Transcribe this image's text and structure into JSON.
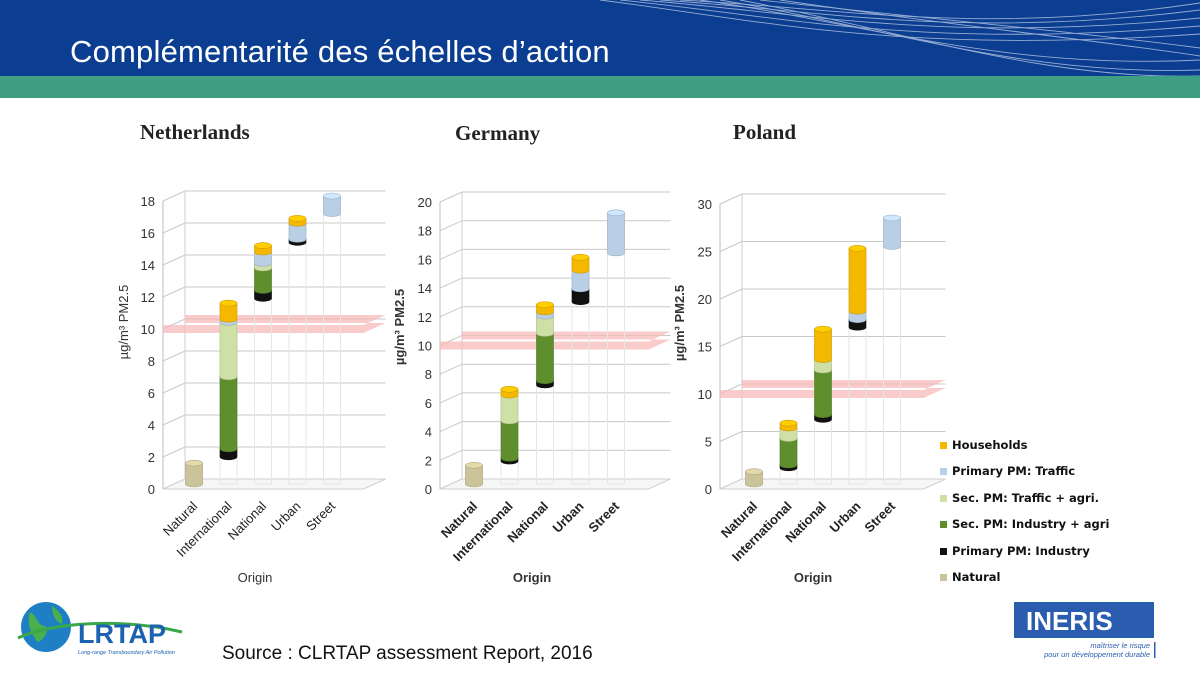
{
  "slide": {
    "title": "Complémentarité des échelles d’action",
    "source": "Source : CLRTAP assessment Report, 2016"
  },
  "logos": {
    "lrtap_text": "LRTAP",
    "lrtap_sub": "Long-range Transboundary Air Pollution",
    "ineris_text": "INERIS",
    "ineris_tagline_1": "maîtriser le risque",
    "ineris_tagline_2": "pour un développement durable"
  },
  "colors": {
    "header_blue": "#0b3d91",
    "band_green": "#3f9f83",
    "households": "#f5b800",
    "primary_traffic": "#b8cfe6",
    "sec_traffic_agri": "#cfe0a6",
    "sec_industry_agri": "#5e8f2c",
    "primary_industry": "#111111",
    "natural": "#cbc39a",
    "limit_band": "#f7b9b9"
  },
  "legend": [
    {
      "key": "households",
      "label": "Households",
      "color": "#f5b800"
    },
    {
      "key": "primary_traffic",
      "label": "Primary PM: Traffic",
      "color": "#b8cfe6"
    },
    {
      "key": "sec_traffic_agri",
      "label": "Sec. PM: Traffic + agri.",
      "color": "#cfe0a6"
    },
    {
      "key": "sec_industry_agri",
      "label": "Sec. PM: Industry + agri",
      "color": "#5e8f2c"
    },
    {
      "key": "primary_industry",
      "label": "Primary PM: Industry",
      "color": "#111111"
    },
    {
      "key": "natural",
      "label": "Natural",
      "color": "#cbc39a"
    }
  ],
  "chart_data": [
    {
      "type": "bar",
      "stacked": true,
      "waterfall": true,
      "title": "Netherlands",
      "xlabel": "Origin",
      "ylabel": "µg/m³ PM2.5",
      "ylim": [
        0,
        18
      ],
      "yticks": [
        0,
        2,
        4,
        6,
        8,
        10,
        12,
        14,
        16,
        18
      ],
      "limit_value": 10,
      "categories": [
        "Natural",
        "International",
        "National",
        "Urban",
        "Street"
      ],
      "bars": [
        {
          "category": "Natural",
          "segments": [
            {
              "key": "natural",
              "from": 0,
              "to": 1.3
            }
          ]
        },
        {
          "category": "International",
          "segments": [
            {
              "key": "primary_industry",
              "from": 1.7,
              "to": 2.2
            },
            {
              "key": "sec_industry_agri",
              "from": 2.2,
              "to": 6.7
            },
            {
              "key": "sec_traffic_agri",
              "from": 6.7,
              "to": 10.1
            },
            {
              "key": "primary_traffic",
              "from": 10.1,
              "to": 10.3
            },
            {
              "key": "households",
              "from": 10.3,
              "to": 11.3
            }
          ]
        },
        {
          "category": "National",
          "segments": [
            {
              "key": "primary_industry",
              "from": 11.6,
              "to": 12.1
            },
            {
              "key": "sec_industry_agri",
              "from": 12.1,
              "to": 13.5
            },
            {
              "key": "sec_traffic_agri",
              "from": 13.5,
              "to": 13.8
            },
            {
              "key": "primary_traffic",
              "from": 13.8,
              "to": 14.5
            },
            {
              "key": "households",
              "from": 14.5,
              "to": 14.9
            }
          ]
        },
        {
          "category": "Urban",
          "segments": [
            {
              "key": "primary_industry",
              "from": 15.1,
              "to": 15.3
            },
            {
              "key": "primary_traffic",
              "from": 15.3,
              "to": 16.3
            },
            {
              "key": "households",
              "from": 16.3,
              "to": 16.6
            }
          ]
        },
        {
          "category": "Street",
          "segments": [
            {
              "key": "primary_traffic",
              "from": 16.9,
              "to": 18.0
            }
          ]
        }
      ]
    },
    {
      "type": "bar",
      "stacked": true,
      "waterfall": true,
      "title": "Germany",
      "xlabel": "Origin",
      "ylabel": "µg/m³ PM2.5",
      "ylim": [
        0,
        20
      ],
      "yticks": [
        0,
        2,
        4,
        6,
        8,
        10,
        12,
        14,
        16,
        18,
        20
      ],
      "limit_value": 10,
      "categories": [
        "Natural",
        "International",
        "National",
        "Urban",
        "Street"
      ],
      "bars": [
        {
          "category": "Natural",
          "segments": [
            {
              "key": "natural",
              "from": 0,
              "to": 1.3
            }
          ]
        },
        {
          "category": "International",
          "segments": [
            {
              "key": "primary_industry",
              "from": 1.6,
              "to": 1.8
            },
            {
              "key": "sec_industry_agri",
              "from": 1.8,
              "to": 4.4
            },
            {
              "key": "sec_traffic_agri",
              "from": 4.4,
              "to": 6.2
            },
            {
              "key": "households",
              "from": 6.2,
              "to": 6.6
            }
          ]
        },
        {
          "category": "National",
          "segments": [
            {
              "key": "primary_industry",
              "from": 6.9,
              "to": 7.2
            },
            {
              "key": "sec_industry_agri",
              "from": 7.2,
              "to": 10.5
            },
            {
              "key": "sec_traffic_agri",
              "from": 10.5,
              "to": 11.7
            },
            {
              "key": "primary_traffic",
              "from": 11.7,
              "to": 12.0
            },
            {
              "key": "households",
              "from": 12.0,
              "to": 12.5
            }
          ]
        },
        {
          "category": "Urban",
          "segments": [
            {
              "key": "primary_industry",
              "from": 12.7,
              "to": 13.6
            },
            {
              "key": "primary_traffic",
              "from": 13.6,
              "to": 14.9
            },
            {
              "key": "households",
              "from": 14.9,
              "to": 15.8
            }
          ]
        },
        {
          "category": "Street",
          "segments": [
            {
              "key": "primary_traffic",
              "from": 16.1,
              "to": 18.9
            }
          ]
        }
      ]
    },
    {
      "type": "bar",
      "stacked": true,
      "waterfall": true,
      "title": "Poland",
      "xlabel": "Origin",
      "ylabel": "µg/m³ PM2.5",
      "ylim": [
        0,
        30
      ],
      "yticks": [
        0,
        5,
        10,
        15,
        20,
        25,
        30
      ],
      "limit_value": 10,
      "categories": [
        "Natural",
        "International",
        "National",
        "Urban",
        "Street"
      ],
      "bars": [
        {
          "category": "Natural",
          "segments": [
            {
              "key": "natural",
              "from": 0,
              "to": 1.3
            }
          ]
        },
        {
          "category": "International",
          "segments": [
            {
              "key": "primary_industry",
              "from": 1.7,
              "to": 2.0
            },
            {
              "key": "sec_industry_agri",
              "from": 2.0,
              "to": 4.8
            },
            {
              "key": "sec_traffic_agri",
              "from": 4.8,
              "to": 5.9
            },
            {
              "key": "households",
              "from": 5.9,
              "to": 6.4
            }
          ]
        },
        {
          "category": "National",
          "segments": [
            {
              "key": "primary_industry",
              "from": 6.8,
              "to": 7.3
            },
            {
              "key": "sec_industry_agri",
              "from": 7.3,
              "to": 12.0
            },
            {
              "key": "sec_traffic_agri",
              "from": 12.0,
              "to": 13.1
            },
            {
              "key": "households",
              "from": 13.1,
              "to": 16.3
            }
          ]
        },
        {
          "category": "Urban",
          "segments": [
            {
              "key": "primary_industry",
              "from": 16.5,
              "to": 17.3
            },
            {
              "key": "primary_traffic",
              "from": 17.3,
              "to": 18.2
            },
            {
              "key": "households",
              "from": 18.2,
              "to": 24.8
            }
          ]
        },
        {
          "category": "Street",
          "segments": [
            {
              "key": "primary_traffic",
              "from": 25.0,
              "to": 28.0
            }
          ]
        }
      ]
    }
  ]
}
